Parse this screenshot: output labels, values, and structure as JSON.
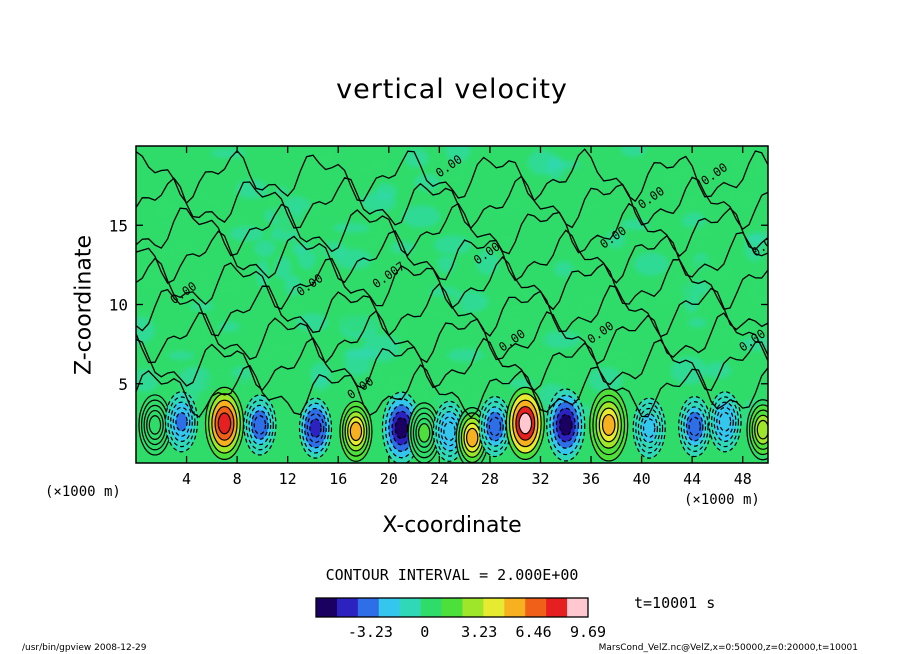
{
  "chart_data": {
    "type": "heatmap",
    "title": "vertical velocity",
    "xlabel": "X-coordinate",
    "ylabel": "Z-coordinate",
    "x_unit_left": "(×1000 m)",
    "x_unit_right": "(×1000 m)",
    "xlim": [
      0,
      50
    ],
    "ylim": [
      0,
      20
    ],
    "x_ticks": [
      4,
      8,
      12,
      16,
      20,
      24,
      28,
      32,
      36,
      40,
      44,
      48
    ],
    "y_ticks": [
      5,
      10,
      15
    ],
    "contour_interval_text": "CONTOUR INTERVAL = 2.000E+00",
    "contour_labels": [
      "0.00",
      "0.00",
      "0.00",
      "0.00",
      "0.00",
      "0.00",
      "0.00",
      "0.00",
      "0.00",
      "0.00",
      "0.00",
      "0.00",
      "0.007"
    ],
    "colorbar": {
      "tick_labels": [
        "-3.23",
        "0",
        "3.23",
        "6.46",
        "9.69"
      ],
      "tick_values": [
        -3.23,
        0,
        3.23,
        6.46,
        9.69
      ],
      "range": [
        -6.46,
        9.69
      ],
      "colors": [
        "#1a0060",
        "#2b22c0",
        "#2e6ee6",
        "#35c6ee",
        "#30d8b8",
        "#2fdc6a",
        "#4ee03a",
        "#9ee62a",
        "#e6ea30",
        "#f6b020",
        "#f06018",
        "#e62020",
        "#ffc8d0"
      ]
    },
    "cells": [
      {
        "x": 1.5,
        "z": 2.4,
        "w": 0.6
      },
      {
        "x": 3.6,
        "z": 2.6,
        "w": -3.2
      },
      {
        "x": 7.0,
        "z": 2.5,
        "w": 8.0
      },
      {
        "x": 9.8,
        "z": 2.4,
        "w": -3.6
      },
      {
        "x": 14.2,
        "z": 2.2,
        "w": -4.6
      },
      {
        "x": 17.4,
        "z": 2.0,
        "w": 5.0
      },
      {
        "x": 21.0,
        "z": 2.2,
        "w": -6.2
      },
      {
        "x": 22.8,
        "z": 1.9,
        "w": 1.2
      },
      {
        "x": 24.8,
        "z": 2.0,
        "w": -2.6
      },
      {
        "x": 26.6,
        "z": 1.6,
        "w": 4.8
      },
      {
        "x": 28.4,
        "z": 2.3,
        "w": -3.6
      },
      {
        "x": 30.8,
        "z": 2.5,
        "w": 9.6
      },
      {
        "x": 34.0,
        "z": 2.4,
        "w": -6.4
      },
      {
        "x": 37.4,
        "z": 2.4,
        "w": 5.2
      },
      {
        "x": 40.6,
        "z": 2.2,
        "w": -2.2
      },
      {
        "x": 44.2,
        "z": 2.3,
        "w": -3.6
      },
      {
        "x": 46.6,
        "z": 2.6,
        "w": -2.6
      },
      {
        "x": 49.6,
        "z": 2.1,
        "w": 3.4
      }
    ]
  },
  "time_label": "t=10001 s",
  "footer_left": "/usr/bin/gpview   2008-12-29",
  "footer_right": "MarsCond_VelZ.nc@VelZ,x=0:50000,z=0:20000,t=10001"
}
